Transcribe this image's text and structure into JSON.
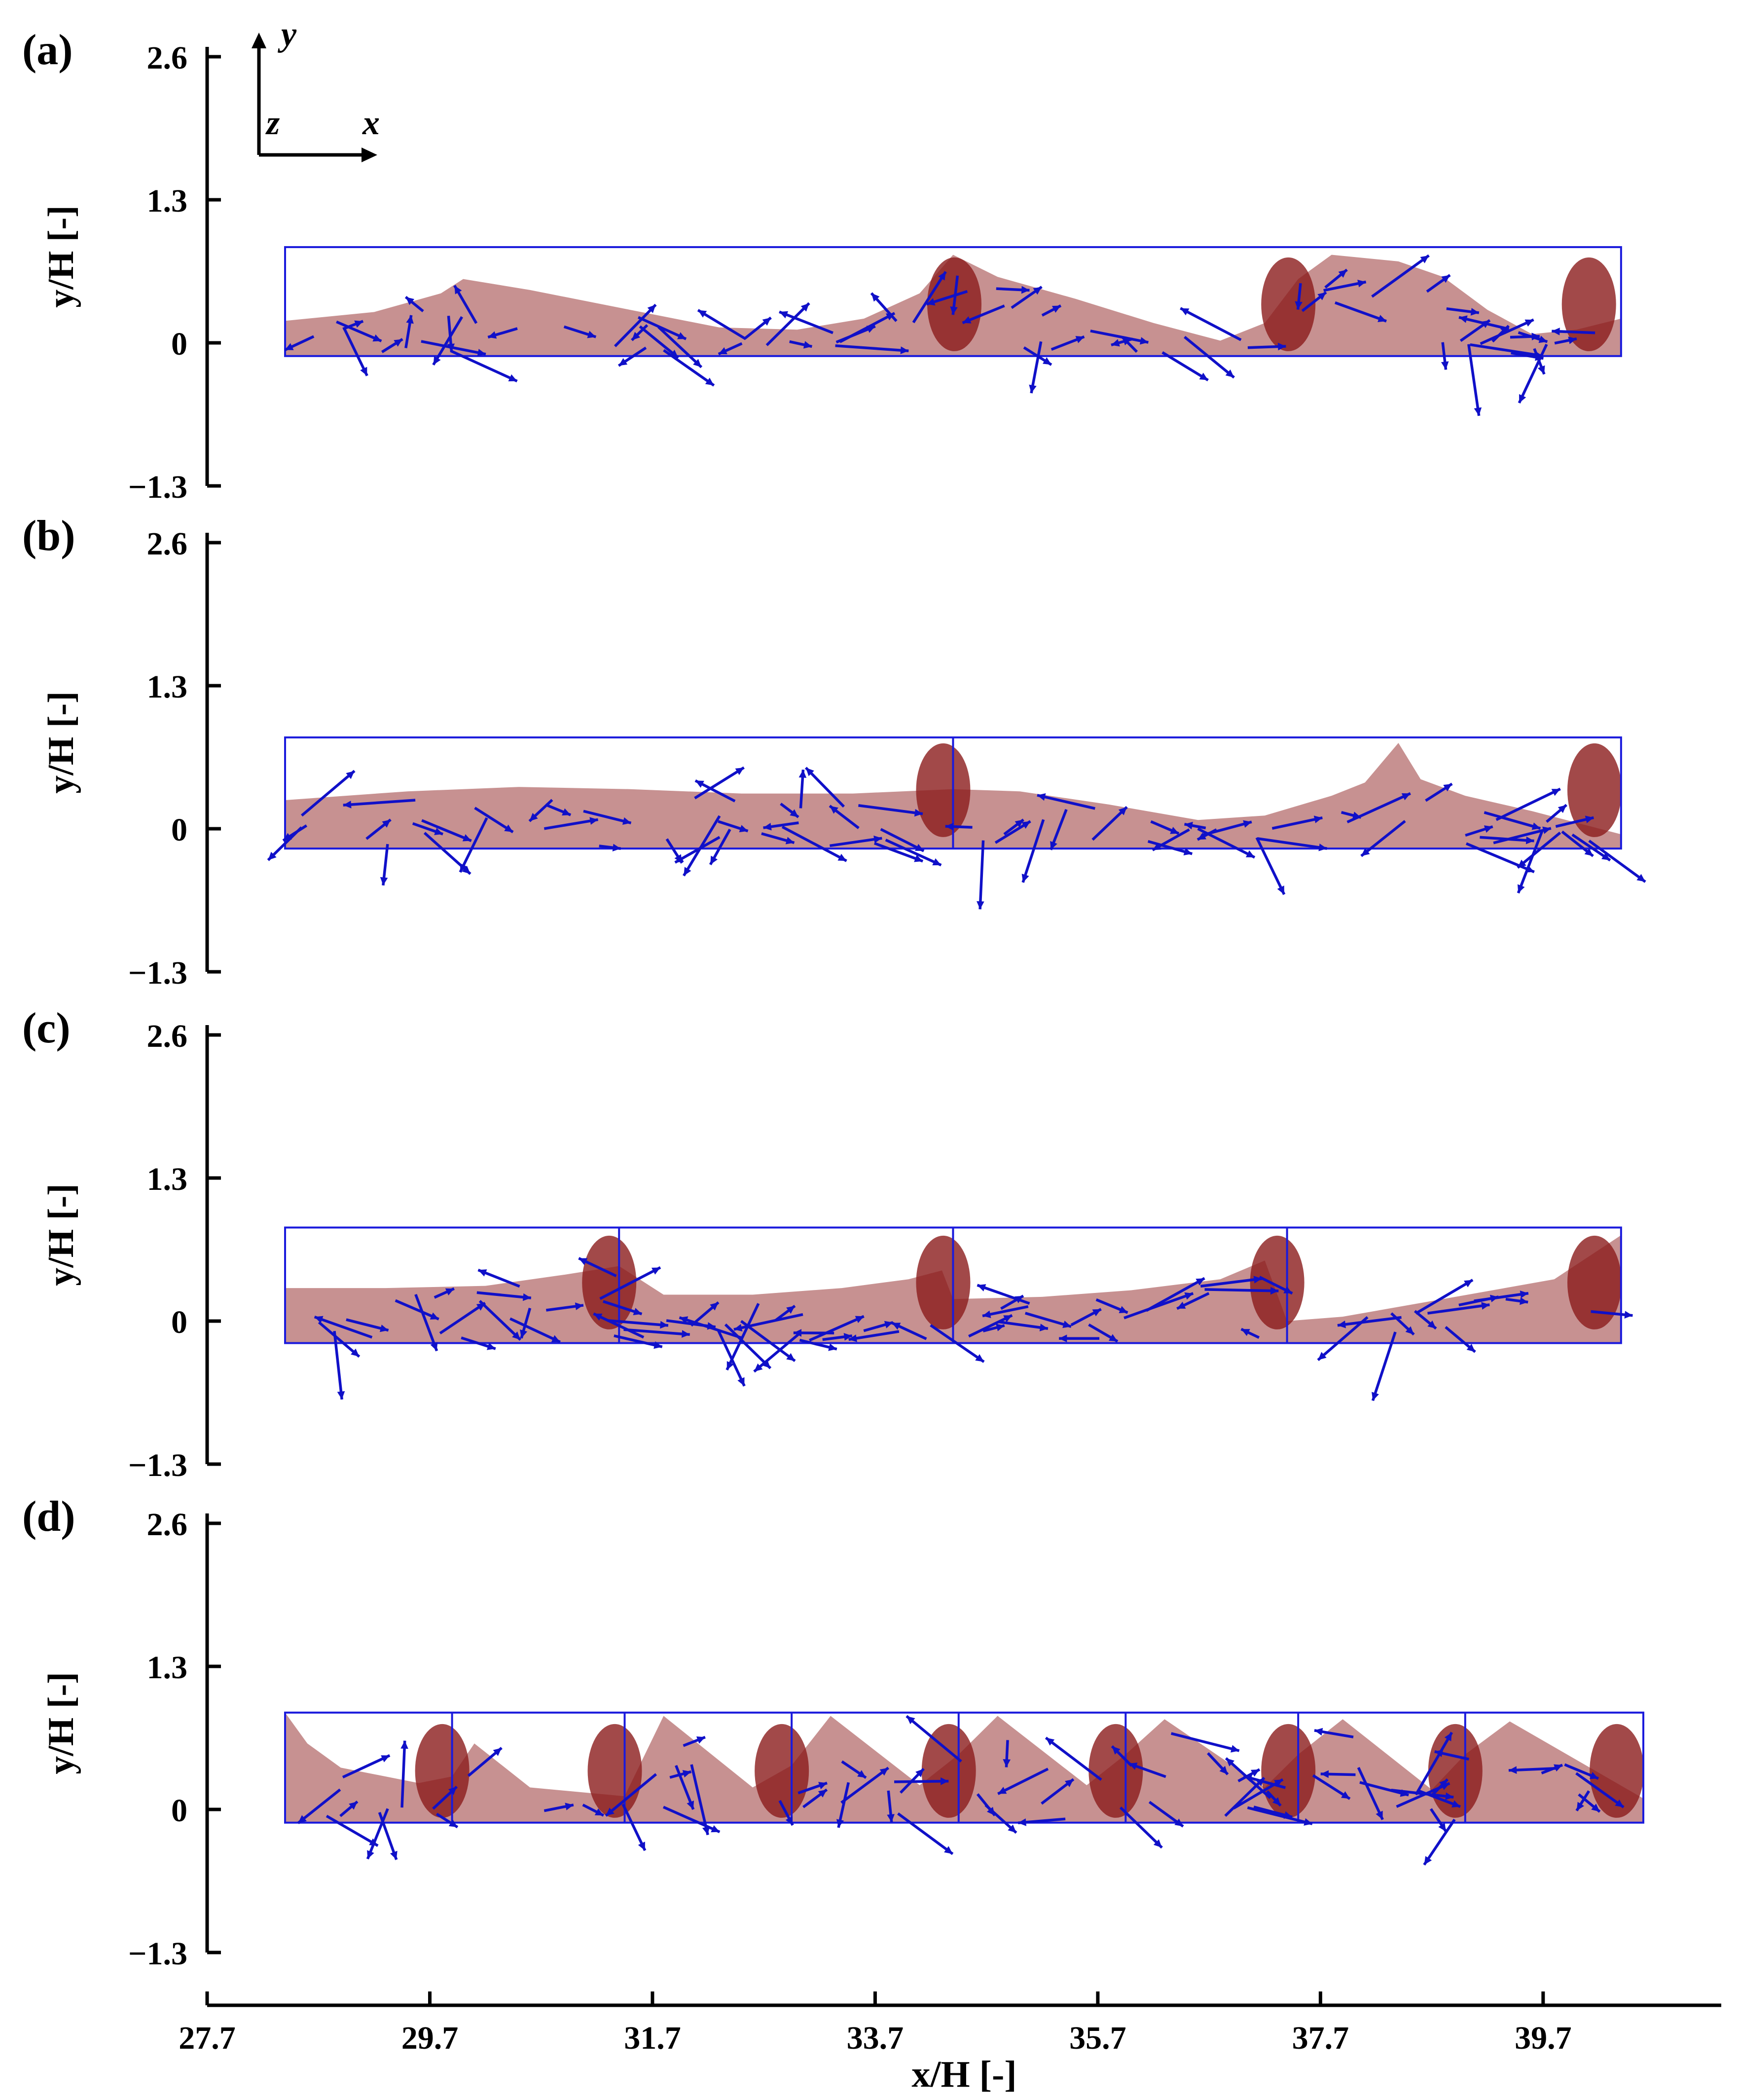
{
  "chart_data": {
    "type": "vector-field",
    "shared_x_axis": {
      "label": "x/H [-]",
      "ticks": [
        "27.7",
        "29.7",
        "31.7",
        "33.7",
        "35.7",
        "37.7",
        "39.7"
      ],
      "tick_values": [
        27.7,
        29.7,
        31.7,
        33.7,
        35.7,
        37.7,
        39.7
      ],
      "xlim": [
        27.7,
        41.3
      ]
    },
    "coordinate_indicator": {
      "x": "x",
      "y": "y",
      "z": "z"
    },
    "panels": [
      {
        "label": "(a)",
        "ylabel": "y/H [-]",
        "yticks": [
          "2.6",
          "1.3",
          "0",
          "−1.3"
        ],
        "ytick_values": [
          2.6,
          1.3,
          0,
          -1.3
        ],
        "ylim": [
          -1.3,
          2.6
        ],
        "tank_x": [
          28.4,
          40.4
        ],
        "tank_y": [
          -0.12,
          0.87
        ],
        "partitions_x": [],
        "surface": [
          [
            28.4,
            0.2
          ],
          [
            29.2,
            0.28
          ],
          [
            29.8,
            0.45
          ],
          [
            30.0,
            0.58
          ],
          [
            30.6,
            0.48
          ],
          [
            31.5,
            0.3
          ],
          [
            32.3,
            0.14
          ],
          [
            33.0,
            0.12
          ],
          [
            33.6,
            0.22
          ],
          [
            34.1,
            0.45
          ],
          [
            34.4,
            0.8
          ],
          [
            34.8,
            0.6
          ],
          [
            35.5,
            0.4
          ],
          [
            36.2,
            0.18
          ],
          [
            36.8,
            0.02
          ],
          [
            37.2,
            0.18
          ],
          [
            37.5,
            0.58
          ],
          [
            37.8,
            0.8
          ],
          [
            38.4,
            0.74
          ],
          [
            38.8,
            0.6
          ],
          [
            39.2,
            0.3
          ],
          [
            39.6,
            0.08
          ],
          [
            40.0,
            0.12
          ],
          [
            40.4,
            0.22
          ]
        ]
      },
      {
        "label": "(b)",
        "ylabel": "y/H [-]",
        "yticks": [
          "2.6",
          "1.3",
          "0",
          "−1.3"
        ],
        "ytick_values": [
          2.6,
          1.3,
          0,
          -1.3
        ],
        "ylim": [
          -1.3,
          2.6
        ],
        "tank_x": [
          28.4,
          40.4
        ],
        "tank_y": [
          -0.18,
          0.83
        ],
        "partitions_x": [
          34.4
        ],
        "surface": [
          [
            28.4,
            0.26
          ],
          [
            29.5,
            0.34
          ],
          [
            30.5,
            0.38
          ],
          [
            31.5,
            0.36
          ],
          [
            32.5,
            0.32
          ],
          [
            33.5,
            0.32
          ],
          [
            34.4,
            0.36
          ],
          [
            35.0,
            0.34
          ],
          [
            35.8,
            0.22
          ],
          [
            36.6,
            0.08
          ],
          [
            37.2,
            0.12
          ],
          [
            37.8,
            0.3
          ],
          [
            38.1,
            0.42
          ],
          [
            38.4,
            0.78
          ],
          [
            38.6,
            0.45
          ],
          [
            39.0,
            0.3
          ],
          [
            39.6,
            0.16
          ],
          [
            40.4,
            -0.05
          ]
        ]
      },
      {
        "label": "(c)",
        "ylabel": "y/H [-]",
        "yticks": [
          "2.6",
          "1.3",
          "0",
          "−1.3"
        ],
        "ytick_values": [
          2.6,
          1.3,
          0,
          -1.3
        ],
        "ylim": [
          -1.3,
          2.6
        ],
        "tank_x": [
          28.4,
          40.4
        ],
        "tank_y": [
          -0.2,
          0.85
        ],
        "partitions_x": [
          31.4,
          34.4,
          37.4
        ],
        "surface": [
          [
            28.4,
            0.3
          ],
          [
            29.3,
            0.3
          ],
          [
            30.2,
            0.32
          ],
          [
            30.9,
            0.42
          ],
          [
            31.4,
            0.5
          ],
          [
            31.8,
            0.24
          ],
          [
            32.6,
            0.24
          ],
          [
            33.4,
            0.3
          ],
          [
            34.0,
            0.38
          ],
          [
            34.3,
            0.46
          ],
          [
            34.4,
            0.2
          ],
          [
            35.2,
            0.22
          ],
          [
            36.0,
            0.28
          ],
          [
            36.8,
            0.38
          ],
          [
            37.2,
            0.55
          ],
          [
            37.4,
            0.0
          ],
          [
            37.9,
            0.04
          ],
          [
            38.8,
            0.2
          ],
          [
            39.8,
            0.38
          ],
          [
            40.4,
            0.78
          ]
        ]
      },
      {
        "label": "(d)",
        "ylabel": "y/H [-]",
        "yticks": [
          "2.6",
          "1.3",
          "0",
          "−1.3"
        ],
        "ytick_values": [
          2.6,
          1.3,
          0,
          -1.3
        ],
        "ylim": [
          -1.3,
          2.6
        ],
        "tank_x": [
          28.4,
          40.6
        ],
        "tank_y": [
          -0.12,
          0.88
        ],
        "partitions_x": [
          29.9,
          31.45,
          32.95,
          34.45,
          35.95,
          37.5,
          39.0
        ],
        "surface": [
          [
            28.4,
            0.88
          ],
          [
            28.6,
            0.6
          ],
          [
            28.9,
            0.38
          ],
          [
            29.6,
            0.24
          ],
          [
            29.9,
            0.3
          ],
          [
            30.1,
            0.6
          ],
          [
            30.6,
            0.2
          ],
          [
            31.45,
            0.12
          ],
          [
            31.8,
            0.85
          ],
          [
            32.6,
            0.2
          ],
          [
            32.95,
            0.4
          ],
          [
            33.3,
            0.85
          ],
          [
            34.1,
            0.22
          ],
          [
            34.45,
            0.5
          ],
          [
            34.8,
            0.85
          ],
          [
            35.6,
            0.22
          ],
          [
            35.95,
            0.5
          ],
          [
            36.3,
            0.82
          ],
          [
            37.2,
            0.2
          ],
          [
            37.5,
            0.5
          ],
          [
            37.9,
            0.82
          ],
          [
            38.7,
            0.18
          ],
          [
            39.0,
            0.5
          ],
          [
            39.4,
            0.8
          ],
          [
            40.6,
            0.1
          ]
        ]
      }
    ]
  }
}
